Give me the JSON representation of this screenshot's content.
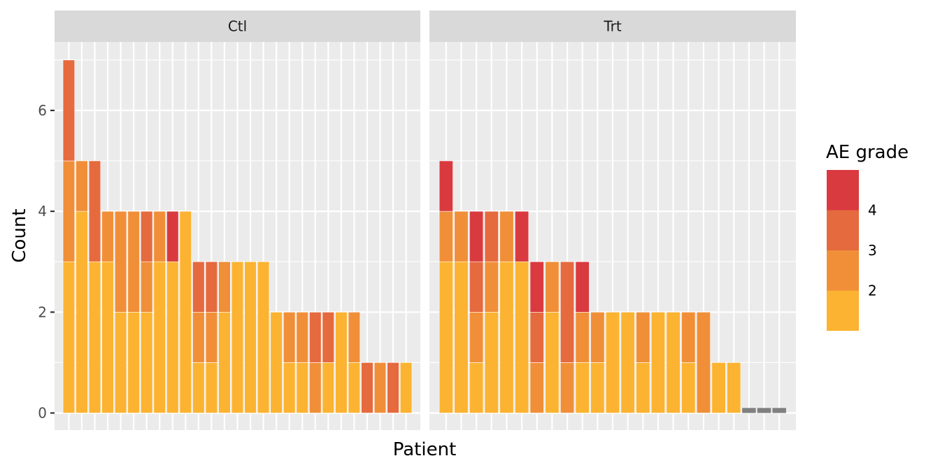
{
  "chart_data": {
    "type": "bar",
    "stacked": true,
    "xlabel": "Patient",
    "ylabel": "Count",
    "ylim": [
      0,
      7.35
    ],
    "y_ticks": [
      0,
      2,
      4,
      6
    ],
    "grid": true,
    "legend": {
      "title": "AE grade",
      "placement": "right",
      "labels": [
        "4",
        "3",
        "2"
      ]
    },
    "grade_colors": {
      "1": "#FBB331",
      "2": "#F08F38",
      "3": "#E56A3E",
      "4": "#D93A3F",
      "none": "#808080"
    },
    "panels": [
      {
        "name": "Ctl",
        "patients": [
          {
            "g1": 3,
            "g2": 2,
            "g3": 2,
            "g4": 0
          },
          {
            "g1": 4,
            "g2": 1,
            "g3": 0,
            "g4": 0
          },
          {
            "g1": 3,
            "g2": 0,
            "g3": 2,
            "g4": 0
          },
          {
            "g1": 3,
            "g2": 1,
            "g3": 0,
            "g4": 0
          },
          {
            "g1": 2,
            "g2": 2,
            "g3": 0,
            "g4": 0
          },
          {
            "g1": 2,
            "g2": 2,
            "g3": 0,
            "g4": 0
          },
          {
            "g1": 2,
            "g2": 1,
            "g3": 1,
            "g4": 0
          },
          {
            "g1": 3,
            "g2": 1,
            "g3": 0,
            "g4": 0
          },
          {
            "g1": 3,
            "g2": 0,
            "g3": 0,
            "g4": 1
          },
          {
            "g1": 4,
            "g2": 0,
            "g3": 0,
            "g4": 0
          },
          {
            "g1": 1,
            "g2": 1,
            "g3": 1,
            "g4": 0
          },
          {
            "g1": 1,
            "g2": 1,
            "g3": 1,
            "g4": 0
          },
          {
            "g1": 2,
            "g2": 1,
            "g3": 0,
            "g4": 0
          },
          {
            "g1": 3,
            "g2": 0,
            "g3": 0,
            "g4": 0
          },
          {
            "g1": 3,
            "g2": 0,
            "g3": 0,
            "g4": 0
          },
          {
            "g1": 3,
            "g2": 0,
            "g3": 0,
            "g4": 0
          },
          {
            "g1": 2,
            "g2": 0,
            "g3": 0,
            "g4": 0
          },
          {
            "g1": 1,
            "g2": 1,
            "g3": 0,
            "g4": 0
          },
          {
            "g1": 1,
            "g2": 1,
            "g3": 0,
            "g4": 0
          },
          {
            "g1": 0,
            "g2": 1,
            "g3": 1,
            "g4": 0
          },
          {
            "g1": 1,
            "g2": 0,
            "g3": 1,
            "g4": 0
          },
          {
            "g1": 2,
            "g2": 0,
            "g3": 0,
            "g4": 0
          },
          {
            "g1": 1,
            "g2": 1,
            "g3": 0,
            "g4": 0
          },
          {
            "g1": 0,
            "g2": 0,
            "g3": 1,
            "g4": 0
          },
          {
            "g1": 0,
            "g2": 1,
            "g3": 0,
            "g4": 0
          },
          {
            "g1": 0,
            "g2": 0,
            "g3": 1,
            "g4": 0
          },
          {
            "g1": 1,
            "g2": 0,
            "g3": 0,
            "g4": 0
          }
        ]
      },
      {
        "name": "Trt",
        "patients": [
          {
            "g1": 3,
            "g2": 1,
            "g3": 0,
            "g4": 1
          },
          {
            "g1": 3,
            "g2": 1,
            "g3": 0,
            "g4": 0
          },
          {
            "g1": 1,
            "g2": 1,
            "g3": 1,
            "g4": 1
          },
          {
            "g1": 2,
            "g2": 1,
            "g3": 1,
            "g4": 0
          },
          {
            "g1": 3,
            "g2": 1,
            "g3": 0,
            "g4": 0
          },
          {
            "g1": 3,
            "g2": 0,
            "g3": 0,
            "g4": 1
          },
          {
            "g1": 0,
            "g2": 1,
            "g3": 1,
            "g4": 1
          },
          {
            "g1": 2,
            "g2": 1,
            "g3": 0,
            "g4": 0
          },
          {
            "g1": 0,
            "g2": 1,
            "g3": 2,
            "g4": 0
          },
          {
            "g1": 1,
            "g2": 1,
            "g3": 0,
            "g4": 1
          },
          {
            "g1": 1,
            "g2": 1,
            "g3": 0,
            "g4": 0
          },
          {
            "g1": 2,
            "g2": 0,
            "g3": 0,
            "g4": 0
          },
          {
            "g1": 2,
            "g2": 0,
            "g3": 0,
            "g4": 0
          },
          {
            "g1": 1,
            "g2": 1,
            "g3": 0,
            "g4": 0
          },
          {
            "g1": 2,
            "g2": 0,
            "g3": 0,
            "g4": 0
          },
          {
            "g1": 2,
            "g2": 0,
            "g3": 0,
            "g4": 0
          },
          {
            "g1": 1,
            "g2": 1,
            "g3": 0,
            "g4": 0
          },
          {
            "g1": 0,
            "g2": 2,
            "g3": 0,
            "g4": 0
          },
          {
            "g1": 1,
            "g2": 0,
            "g3": 0,
            "g4": 0
          },
          {
            "g1": 1,
            "g2": 0,
            "g3": 0,
            "g4": 0
          },
          {
            "none": 0.1
          },
          {
            "none": 0.1
          },
          {
            "none": 0.1
          }
        ]
      }
    ]
  }
}
